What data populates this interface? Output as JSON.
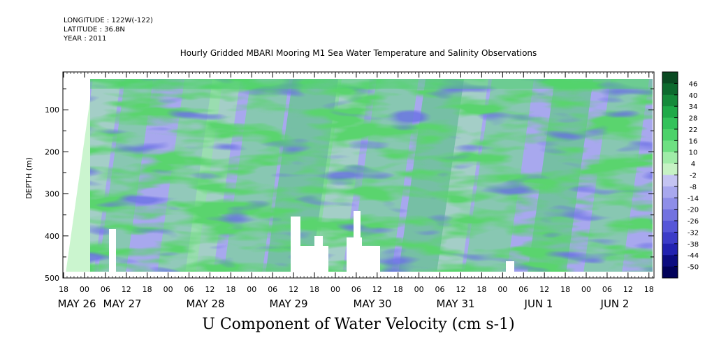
{
  "header": {
    "longitude": "LONGITUDE : 122W(-122)",
    "latitude": "LATITUDE : 36.8N",
    "year": "YEAR : 2011"
  },
  "chart_data": {
    "type": "heatmap",
    "title": "Hourly Gridded MBARI Mooring M1 Sea Water Temperature and Salinity Observations",
    "caption": "U Component of Water Velocity (cm s-1)",
    "ylabel": "DEPTH (m)",
    "y_axis_inverted": true,
    "ylim": [
      500,
      10
    ],
    "y_ticks": [
      100,
      200,
      300,
      400,
      500
    ],
    "x_hour_ticks": [
      "18",
      "00",
      "06",
      "12",
      "18",
      "00",
      "06",
      "12",
      "18",
      "00",
      "06",
      "12",
      "18",
      "00",
      "06",
      "12",
      "18",
      "00",
      "06",
      "12",
      "18",
      "00",
      "06",
      "12",
      "18",
      "00",
      "06",
      "12",
      "18"
    ],
    "x_date_labels": [
      "MAY 26",
      "MAY 27",
      "MAY 28",
      "MAY 29",
      "MAY 30",
      "MAY 31",
      "JUN 1",
      "JUN 2"
    ],
    "colorbar": {
      "labels": [
        "46",
        "40",
        "34",
        "28",
        "22",
        "16",
        "10",
        "4",
        "-2",
        "-8",
        "-14",
        "-20",
        "-26",
        "-32",
        "-38",
        "-44",
        "-50"
      ],
      "range": [
        -50,
        50
      ],
      "colors": [
        "#0a4a22",
        "#0d6a2e",
        "#158a3a",
        "#1faa48",
        "#33c25a",
        "#4cd26a",
        "#6ee082",
        "#a0eca8",
        "#c6f2c4",
        "#c4c4f2",
        "#a8a8ee",
        "#8e8ee8",
        "#7272e0",
        "#5656d8",
        "#3c3cc8",
        "#2222b0",
        "#0c0c80",
        "#02025a"
      ]
    }
  }
}
